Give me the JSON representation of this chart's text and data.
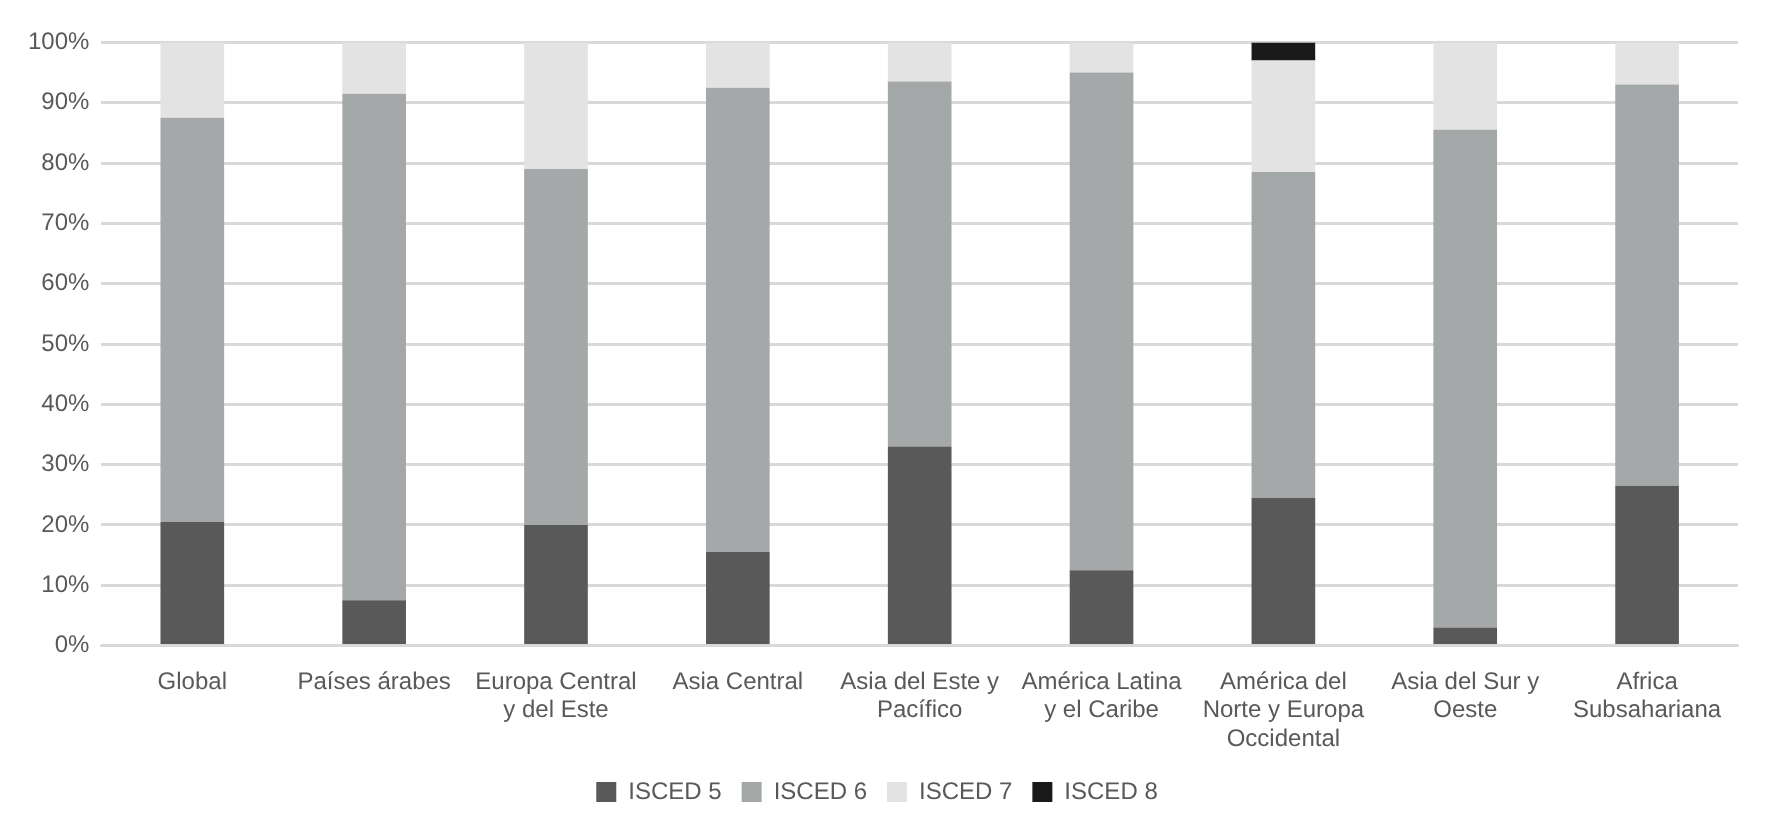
{
  "chart_data": {
    "type": "bar",
    "stacked": true,
    "categories": [
      "Global",
      "Países árabes",
      "Europa Central y del Este",
      "Asia Central",
      "Asia del Este y Pacífico",
      "América Latina y el Caribe",
      "América del Norte y Europa Occidental",
      "Asia del Sur y Oeste",
      "Africa Subsahariana"
    ],
    "series": [
      {
        "name": "ISCED 5",
        "color": "#595959",
        "values": [
          20.5,
          7.5,
          20,
          15.5,
          33,
          12.5,
          24.5,
          3,
          26.5
        ]
      },
      {
        "name": "ISCED 6",
        "color": "#a5a8a8",
        "values": [
          67,
          84,
          59,
          77,
          60.5,
          82.5,
          54,
          82.5,
          66.5
        ]
      },
      {
        "name": "ISCED 7",
        "color": "#e3e3e3",
        "values": [
          12.5,
          8.5,
          21,
          7.5,
          6.5,
          5,
          18.5,
          14.5,
          7
        ]
      },
      {
        "name": "ISCED 8",
        "color": "#1a1a1a",
        "values": [
          0,
          0,
          0,
          0,
          0,
          0,
          3,
          0,
          0
        ]
      }
    ],
    "ylim": [
      0,
      100
    ],
    "yticks": [
      {
        "value": 0,
        "label": "0%"
      },
      {
        "value": 10,
        "label": "10%"
      },
      {
        "value": 20,
        "label": "20%"
      },
      {
        "value": 30,
        "label": "30%"
      },
      {
        "value": 40,
        "label": "40%"
      },
      {
        "value": 50,
        "label": "50%"
      },
      {
        "value": 60,
        "label": "60%"
      },
      {
        "value": 70,
        "label": "70%"
      },
      {
        "value": 80,
        "label": "80%"
      },
      {
        "value": 90,
        "label": "90%"
      },
      {
        "value": 100,
        "label": "100%"
      }
    ],
    "grid": "y",
    "legend": "bottom"
  }
}
